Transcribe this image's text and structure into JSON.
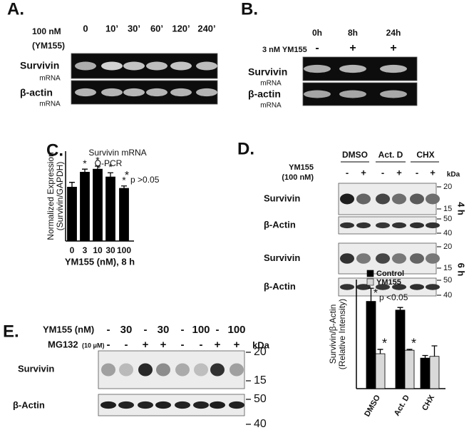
{
  "panels": {
    "A": {
      "label": "A.",
      "treatment": [
        "100 nM",
        "(YM155)"
      ],
      "lanes": [
        "0",
        "10’",
        "30’",
        "60’",
        "120’",
        "240’"
      ],
      "rows": [
        {
          "name": "Survivin",
          "sub": "mRNA"
        },
        {
          "name": "β-actin",
          "sub": "mRNA"
        }
      ]
    },
    "B": {
      "label": "B.",
      "lanes": [
        "0h",
        "8h",
        "24h"
      ],
      "treatment": "3 nM YM155",
      "signs": [
        "-",
        "+",
        "+"
      ],
      "rows": [
        {
          "name": "Survivin",
          "sub": "mRNA"
        },
        {
          "name": "β-actin",
          "sub": "mRNA"
        }
      ]
    },
    "C": {
      "label": "C."
    },
    "D": {
      "label": "D.",
      "groups": [
        "DMSO",
        "Act. D",
        "CHX"
      ],
      "treatment": [
        "YM155",
        "(100 nM)"
      ],
      "signs": [
        "-",
        "+",
        "-",
        "+",
        "-",
        "+"
      ],
      "kda": "kDa",
      "blocks": [
        {
          "time": "4 h",
          "rows": [
            {
              "name": "Survivin",
              "markers": [
                "20",
                "15"
              ]
            },
            {
              "name": "β-Actin",
              "markers": [
                "50",
                "40"
              ]
            }
          ]
        },
        {
          "time": "6 h",
          "rows": [
            {
              "name": "Survivin",
              "markers": [
                "20",
                "15"
              ]
            },
            {
              "name": "β-Actin",
              "markers": [
                "50",
                "40"
              ]
            }
          ]
        }
      ]
    },
    "E": {
      "label": "E.",
      "kda": "kDa",
      "treatments": [
        {
          "name": "YM155 (nM)",
          "values": [
            "-",
            "30",
            "-",
            "30",
            "-",
            "100",
            "-",
            "100"
          ]
        },
        {
          "name": "MG132",
          "unit": "(10 μM)",
          "values": [
            "-",
            "-",
            "+",
            "+",
            "-",
            "-",
            "+",
            "+"
          ]
        }
      ],
      "rows": [
        {
          "name": "Survivin",
          "markers": [
            "20",
            "15"
          ]
        },
        {
          "name": "β-Actin",
          "markers": [
            "50",
            "40"
          ]
        }
      ]
    }
  },
  "chart_data": [
    {
      "type": "bar",
      "title": [
        "Survivin mRNA",
        "Q-PCR"
      ],
      "y_label": [
        "Normalized Expression",
        "(Survivin/GAPDH)"
      ],
      "x_label": "YM155 (nM), 8 h",
      "categories": [
        "0",
        "3",
        "10",
        "30",
        "100"
      ],
      "values": [
        0.9,
        1.15,
        1.2,
        1.07,
        0.88
      ],
      "errors": [
        0.08,
        0.05,
        0.05,
        0.07,
        0.04
      ],
      "markers": [
        null,
        "*",
        "*",
        "*",
        "*"
      ],
      "color": "#000000",
      "annotation": {
        "marker": "*",
        "text": "p >0.05"
      },
      "ylim": [
        0,
        1.5
      ]
    },
    {
      "type": "bar",
      "y_label": [
        "Survivin/β-Actin",
        "(Relative Intensity)"
      ],
      "categories": [
        "DMSO",
        "Act. D",
        "CHX"
      ],
      "series": [
        {
          "name": "Control",
          "color": "#000000",
          "values": [
            1.0,
            0.9,
            0.35
          ],
          "errors": [
            0.15,
            0.03,
            0.03
          ],
          "markers": [
            null,
            null,
            null
          ]
        },
        {
          "name": "YM155",
          "color": "#d9d9d9",
          "values": [
            0.4,
            0.44,
            0.37
          ],
          "errors": [
            0.05,
            0.01,
            0.12
          ],
          "markers": [
            "*",
            "*",
            null
          ]
        }
      ],
      "annotation": {
        "marker": "*",
        "text": "p <0.05"
      },
      "ylim": [
        0,
        1.25
      ]
    }
  ]
}
